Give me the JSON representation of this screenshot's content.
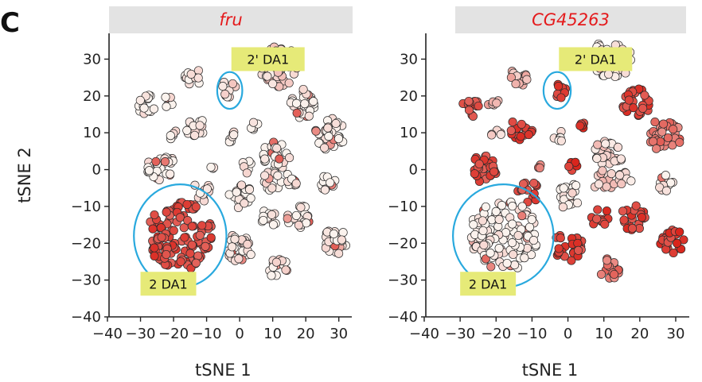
{
  "figure": {
    "panel_letter": "C"
  },
  "colors": {
    "title_bar": "#e3e3e3",
    "title_text": "#e41a1c",
    "highlight_ring": "#29a9de",
    "label_box": "#e6ea78",
    "point_low": "#fbf3ee",
    "point_high": "#d9251c",
    "point_stroke": "#2a2a2a"
  },
  "chart_data": [
    {
      "type": "scatter",
      "title": "fru",
      "xlabel": "tSNE 1",
      "ylabel": "tSNE 2",
      "xlim": [
        -40,
        32
      ],
      "ylim": [
        -40,
        37
      ],
      "xticks": [
        -40,
        -30,
        -20,
        -10,
        0,
        10,
        20,
        30
      ],
      "yticks": [
        -40,
        -30,
        -20,
        -10,
        0,
        10,
        20,
        30
      ],
      "color_encoding": "expression level (0 = white, 1 = red)",
      "annotations": [
        {
          "text": "2' DA1",
          "x": -2.5,
          "y": 30,
          "ring": {
            "cx": -3,
            "cy": 21.5,
            "rx": 3.8,
            "ry": 5
          }
        },
        {
          "text": "2 DA1",
          "x": -30,
          "y": -31,
          "ring": {
            "cx": -18,
            "cy": -18,
            "rx": 14,
            "ry": 14
          }
        }
      ],
      "clusters": [
        {
          "x": -28,
          "y": 18,
          "r": 3,
          "n": 14,
          "level": 0.02
        },
        {
          "x": -21,
          "y": 18.5,
          "r": 2,
          "n": 6,
          "level": 0.02
        },
        {
          "x": -14,
          "y": 25,
          "r": 2.5,
          "n": 12,
          "level": 0.03
        },
        {
          "x": -20,
          "y": 9.5,
          "r": 1.5,
          "n": 5,
          "level": 0.02
        },
        {
          "x": -13,
          "y": 11,
          "r": 3,
          "n": 18,
          "level": 0.12
        },
        {
          "x": -24,
          "y": 1,
          "r": 4,
          "n": 28,
          "level": 0.02
        },
        {
          "x": -11,
          "y": -6,
          "r": 3,
          "n": 14,
          "level": 0.06
        },
        {
          "x": -8,
          "y": 1,
          "r": 1,
          "n": 3,
          "level": 0.02
        },
        {
          "x": -3,
          "y": 22,
          "r": 2.5,
          "n": 9,
          "level": 0.1
        },
        {
          "x": -3,
          "y": 9,
          "r": 1.8,
          "n": 7,
          "level": 0.02
        },
        {
          "x": 4,
          "y": 12,
          "r": 1.5,
          "n": 5,
          "level": 0.02
        },
        {
          "x": 12,
          "y": 28,
          "r": 5.5,
          "n": 50,
          "level": 0.14
        },
        {
          "x": 19,
          "y": 18,
          "r": 4,
          "n": 30,
          "level": 0.02
        },
        {
          "x": 27,
          "y": 9.5,
          "r": 4.5,
          "n": 36,
          "level": 0.02
        },
        {
          "x": 11,
          "y": 4,
          "r": 4,
          "n": 28,
          "level": 0.03
        },
        {
          "x": 2,
          "y": 1,
          "r": 2,
          "n": 6,
          "level": 0.02
        },
        {
          "x": 10,
          "y": -3,
          "r": 3,
          "n": 14,
          "level": 0.04
        },
        {
          "x": 16,
          "y": -2.5,
          "r": 2,
          "n": 9,
          "level": 0.02
        },
        {
          "x": 27,
          "y": -3.5,
          "r": 2.5,
          "n": 12,
          "level": 0.02
        },
        {
          "x": 0,
          "y": -7,
          "r": 3.5,
          "n": 22,
          "level": 0.02
        },
        {
          "x": 9,
          "y": -13,
          "r": 2.5,
          "n": 12,
          "level": 0.02
        },
        {
          "x": 18,
          "y": -13,
          "r": 3.5,
          "n": 22,
          "level": 0.02
        },
        {
          "x": 29,
          "y": -19.5,
          "r": 3.5,
          "n": 24,
          "level": 0.02
        },
        {
          "x": 0,
          "y": -21,
          "r": 4,
          "n": 30,
          "level": 0.03
        },
        {
          "x": 12,
          "y": -27,
          "r": 3,
          "n": 16,
          "level": 0.06
        },
        {
          "x": -18,
          "y": -18,
          "r": 9.5,
          "n": 120,
          "level": 0.82
        }
      ]
    },
    {
      "type": "scatter",
      "title": "CG45263",
      "xlabel": "tSNE 1",
      "ylabel": "",
      "xlim": [
        -40,
        32
      ],
      "ylim": [
        -40,
        37
      ],
      "xticks": [
        -40,
        -30,
        -20,
        -10,
        0,
        10,
        20,
        30
      ],
      "yticks": [
        -40,
        -30,
        -20,
        -10,
        0,
        10,
        20,
        30
      ],
      "color_encoding": "expression level (0 = white, 1 = red)",
      "annotations": [
        {
          "text": "2' DA1",
          "x": -2.5,
          "y": 30,
          "ring": {
            "cx": -3,
            "cy": 21.5,
            "rx": 3.8,
            "ry": 5
          }
        },
        {
          "text": "2 DA1",
          "x": -30,
          "y": -31,
          "ring": {
            "cx": -18,
            "cy": -18,
            "rx": 14,
            "ry": 14
          }
        }
      ],
      "clusters": [
        {
          "x": -28,
          "y": 17,
          "r": 3,
          "n": 14,
          "level": 0.8
        },
        {
          "x": -21,
          "y": 17.5,
          "r": 2,
          "n": 6,
          "level": 0.3
        },
        {
          "x": -14,
          "y": 25,
          "r": 2.5,
          "n": 12,
          "level": 0.3
        },
        {
          "x": -20,
          "y": 9.5,
          "r": 1.5,
          "n": 5,
          "level": 0.2
        },
        {
          "x": -13,
          "y": 11,
          "r": 3,
          "n": 18,
          "level": 0.85
        },
        {
          "x": -24,
          "y": 0,
          "r": 4,
          "n": 28,
          "level": 0.8
        },
        {
          "x": -11,
          "y": -6,
          "r": 3,
          "n": 14,
          "level": 0.8
        },
        {
          "x": -8,
          "y": 1,
          "r": 1,
          "n": 3,
          "level": 0.6
        },
        {
          "x": -3,
          "y": 21,
          "r": 2.5,
          "n": 9,
          "level": 0.85
        },
        {
          "x": -3,
          "y": 9,
          "r": 1.8,
          "n": 7,
          "level": 0.05
        },
        {
          "x": 4,
          "y": 12,
          "r": 1.5,
          "n": 5,
          "level": 0.9
        },
        {
          "x": 12,
          "y": 30,
          "r": 5.5,
          "n": 50,
          "level": 0.04
        },
        {
          "x": 19,
          "y": 18,
          "r": 4,
          "n": 30,
          "level": 0.85
        },
        {
          "x": 27,
          "y": 9.5,
          "r": 4.5,
          "n": 36,
          "level": 0.6
        },
        {
          "x": 11,
          "y": 4,
          "r": 4,
          "n": 28,
          "level": 0.15
        },
        {
          "x": 2,
          "y": 1,
          "r": 2,
          "n": 6,
          "level": 0.9
        },
        {
          "x": 10,
          "y": -3,
          "r": 3,
          "n": 14,
          "level": 0.2
        },
        {
          "x": 16,
          "y": -2.5,
          "r": 2,
          "n": 9,
          "level": 0.1
        },
        {
          "x": 27,
          "y": -3.5,
          "r": 2.5,
          "n": 12,
          "level": 0.05
        },
        {
          "x": 0,
          "y": -7,
          "r": 3.5,
          "n": 22,
          "level": 0.05
        },
        {
          "x": 9,
          "y": -13,
          "r": 2.5,
          "n": 12,
          "level": 0.85
        },
        {
          "x": 18,
          "y": -13,
          "r": 3.5,
          "n": 22,
          "level": 0.85
        },
        {
          "x": 29,
          "y": -19.5,
          "r": 3.5,
          "n": 24,
          "level": 0.9
        },
        {
          "x": 0,
          "y": -21,
          "r": 4,
          "n": 30,
          "level": 0.85
        },
        {
          "x": 12,
          "y": -27,
          "r": 3,
          "n": 16,
          "level": 0.6
        },
        {
          "x": -18,
          "y": -18,
          "r": 9.5,
          "n": 120,
          "level": 0.02
        }
      ]
    }
  ]
}
